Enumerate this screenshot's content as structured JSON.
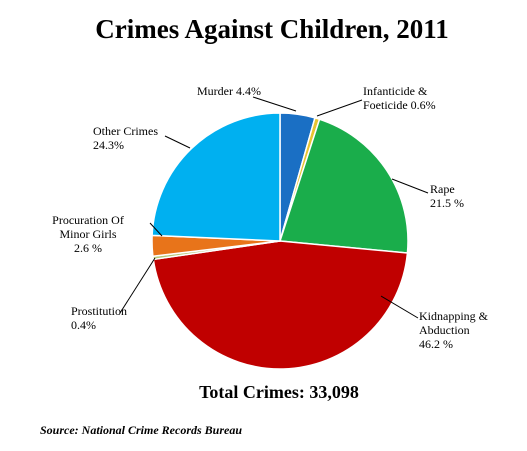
{
  "chart_data": {
    "type": "pie",
    "title": "Crimes Against Children, 2011",
    "total_label": "Total Crimes: 33,098",
    "source": "Source: National Crime Records Bureau",
    "start_angle_deg": 0,
    "direction": "clockwise",
    "slices": [
      {
        "name": "Murder",
        "value": 4.4,
        "label_lines": [
          "Murder 4.4%"
        ],
        "color": "#1a6fc4"
      },
      {
        "name": "Infanticide & Foeticide",
        "value": 0.6,
        "label_lines": [
          "Infanticide &",
          "Foeticide 0.6%"
        ],
        "color": "#e8c531"
      },
      {
        "name": "Rape",
        "value": 21.5,
        "label_lines": [
          "Rape",
          "21.5 %"
        ],
        "color": "#1aad4b"
      },
      {
        "name": "Kidnapping & Abduction",
        "value": 46.2,
        "label_lines": [
          "Kidnapping &",
          "Abduction",
          "46.2 %"
        ],
        "color": "#c00000"
      },
      {
        "name": "Prostitution",
        "value": 0.4,
        "label_lines": [
          "Prostitution",
          "0.4%"
        ],
        "color": "#b5c97a"
      },
      {
        "name": "Procuration Of Minor Girls",
        "value": 2.6,
        "label_lines": [
          "Procuration Of",
          "Minor Girls",
          "2.6 %"
        ],
        "color": "#e8741a"
      },
      {
        "name": "Other Crimes",
        "value": 24.3,
        "label_lines": [
          "Other Crimes",
          "24.3%"
        ],
        "color": "#00b0f0"
      }
    ]
  }
}
